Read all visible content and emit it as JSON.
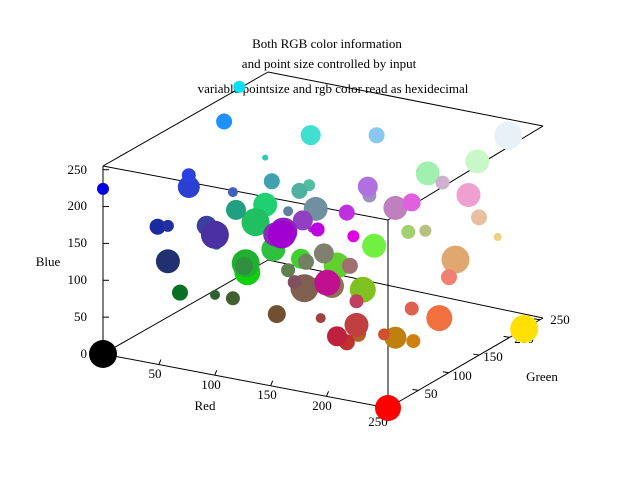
{
  "chart_data": {
    "type": "scatter",
    "title": "Both RGB color information",
    "subtitle": "and point size controlled by input",
    "key_entry": "variable pointsize and rgb color read as hexidecimal",
    "xlabel": "Red",
    "ylabel": "Green",
    "zlabel": "Blue",
    "xlabel_color": "#e00000",
    "ylabel_color": "#00e000",
    "zlabel_color": "#0000e0",
    "xlim": [
      0,
      255
    ],
    "ylim": [
      0,
      255
    ],
    "zlim": [
      0,
      255
    ],
    "x_ticks": [
      "50",
      "100",
      "150",
      "200",
      "250"
    ],
    "y_ticks": [
      "50",
      "100",
      "150",
      "200",
      "250"
    ],
    "z_ticks": [
      "0",
      "50",
      "100",
      "150",
      "200",
      "250"
    ],
    "grid": false,
    "points": [
      {
        "color": "#000000",
        "size": 14
      },
      {
        "color": "#ff0000",
        "size": 13
      },
      {
        "color": "#ffe000",
        "size": 14
      },
      {
        "color": "#00e0ff",
        "size": 6
      },
      {
        "color": "#0000e0",
        "size": 6
      },
      {
        "color": "#e000e0",
        "size": 6
      },
      {
        "color": "#1e90ff",
        "size": 8
      },
      {
        "color": "#40e0d0",
        "size": 10
      },
      {
        "color": "#88c8f0",
        "size": 8
      },
      {
        "color": "#e8f0f8",
        "size": 14
      },
      {
        "color": "#a0f0b0",
        "size": 12
      },
      {
        "color": "#c8f8c8",
        "size": 12
      },
      {
        "color": "#2a40d0",
        "size": 11
      },
      {
        "color": "#1a2aa0",
        "size": 8
      },
      {
        "color": "#2a40e0",
        "size": 7
      },
      {
        "color": "#20a080",
        "size": 10
      },
      {
        "color": "#20d070",
        "size": 12
      },
      {
        "color": "#20c060",
        "size": 14
      },
      {
        "color": "#203070",
        "size": 12
      },
      {
        "color": "#4a30a0",
        "size": 14
      },
      {
        "color": "#3a40a0",
        "size": 10
      },
      {
        "color": "#2030a0",
        "size": 6
      },
      {
        "color": "#087020",
        "size": 8
      },
      {
        "color": "#309040",
        "size": 9
      },
      {
        "color": "#20b030",
        "size": 14
      },
      {
        "color": "#10d010",
        "size": 13
      },
      {
        "color": "#30c040",
        "size": 12
      },
      {
        "color": "#40d030",
        "size": 10
      },
      {
        "color": "#8030b0",
        "size": 12
      },
      {
        "color": "#9040c0",
        "size": 10
      },
      {
        "color": "#9020c0",
        "size": 14
      },
      {
        "color": "#c030e0",
        "size": 8
      },
      {
        "color": "#c000e0",
        "size": 7
      },
      {
        "color": "#a000d0",
        "size": 14
      },
      {
        "color": "#b070e0",
        "size": 10
      },
      {
        "color": "#50b0a0",
        "size": 8
      },
      {
        "color": "#40a0b0",
        "size": 8
      },
      {
        "color": "#7090a0",
        "size": 12
      },
      {
        "color": "#a090c0",
        "size": 7
      },
      {
        "color": "#805060",
        "size": 7
      },
      {
        "color": "#608050",
        "size": 7
      },
      {
        "color": "#708060",
        "size": 8
      },
      {
        "color": "#907050",
        "size": 12
      },
      {
        "color": "#806050",
        "size": 14
      },
      {
        "color": "#a07070",
        "size": 8
      },
      {
        "color": "#808070",
        "size": 10
      },
      {
        "color": "#6aa030",
        "size": 8
      },
      {
        "color": "#80c020",
        "size": 13
      },
      {
        "color": "#70f040",
        "size": 12
      },
      {
        "color": "#a0d070",
        "size": 7
      },
      {
        "color": "#60d030",
        "size": 13
      },
      {
        "color": "#b8c080",
        "size": 6
      },
      {
        "color": "#c0f040",
        "size": 5
      },
      {
        "color": "#d0b0d0",
        "size": 7
      },
      {
        "color": "#c080c0",
        "size": 12
      },
      {
        "color": "#e060e0",
        "size": 9
      },
      {
        "color": "#f0a0d0",
        "size": 12
      },
      {
        "color": "#e8c0a0",
        "size": 8
      },
      {
        "color": "#f0d080",
        "size": 4
      },
      {
        "color": "#e0a870",
        "size": 14
      },
      {
        "color": "#f08070",
        "size": 8
      },
      {
        "color": "#f07040",
        "size": 13
      },
      {
        "color": "#e06050",
        "size": 7
      },
      {
        "color": "#d08010",
        "size": 7
      },
      {
        "color": "#c08010",
        "size": 11
      },
      {
        "color": "#c01090",
        "size": 13
      },
      {
        "color": "#c04040",
        "size": 12
      },
      {
        "color": "#c02040",
        "size": 10
      },
      {
        "color": "#b06020",
        "size": 8
      },
      {
        "color": "#c04060",
        "size": 7
      },
      {
        "color": "#c03030",
        "size": 8
      },
      {
        "color": "#d05030",
        "size": 6
      },
      {
        "color": "#a04040",
        "size": 5
      },
      {
        "color": "#705030",
        "size": 9
      },
      {
        "color": "#406030",
        "size": 7
      },
      {
        "color": "#208060",
        "size": 5
      },
      {
        "color": "#306030",
        "size": 5
      },
      {
        "color": "#6080a0",
        "size": 5
      },
      {
        "color": "#50c0a0",
        "size": 6
      },
      {
        "color": "#4060c0",
        "size": 5
      },
      {
        "color": "#20d0b0",
        "size": 3
      },
      {
        "color": "#a030c0",
        "size": 3
      }
    ]
  }
}
